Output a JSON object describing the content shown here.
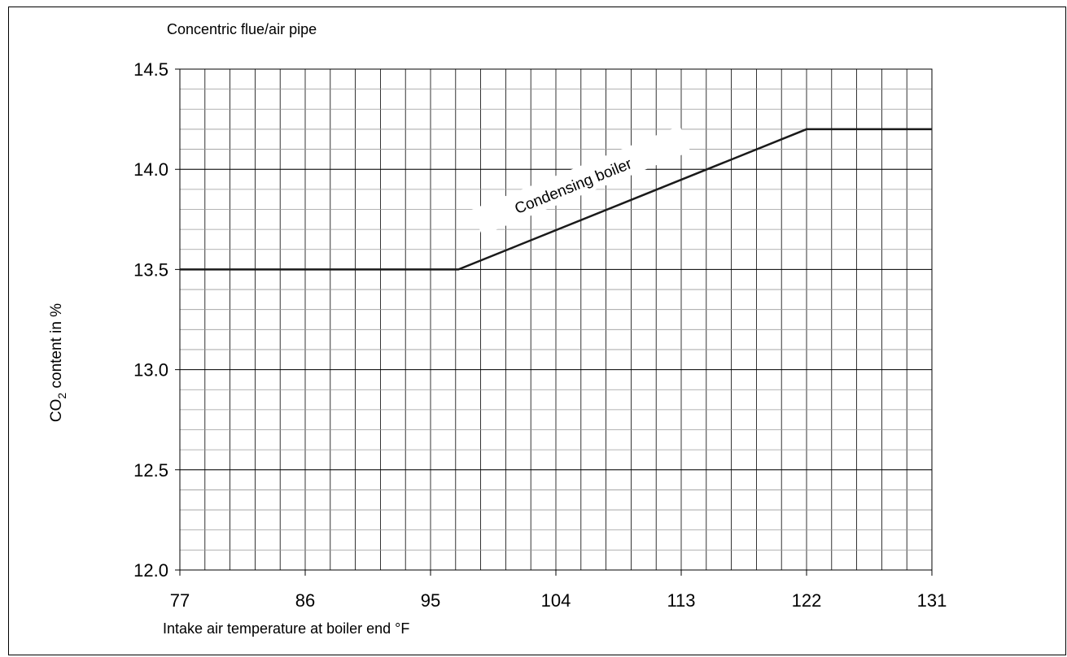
{
  "chart_data": {
    "type": "line",
    "title": "Concentric flue/air pipe",
    "xlabel": "Intake air temperature at boiler end °F",
    "ylabel": {
      "prefix": "CO",
      "subscript": "2",
      "suffix": " content in %"
    },
    "xlim": [
      77,
      131
    ],
    "ylim": [
      12.0,
      14.5
    ],
    "x_ticks": [
      "77",
      "86",
      "95",
      "104",
      "113",
      "122",
      "131"
    ],
    "x_tick_values": [
      77,
      86,
      95,
      104,
      113,
      122,
      131
    ],
    "y_ticks": [
      "12.0",
      "12.5",
      "13.0",
      "13.5",
      "14.0",
      "14.5"
    ],
    "y_tick_values": [
      12.0,
      12.5,
      13.0,
      13.5,
      14.0,
      14.5
    ],
    "x_minor_step": 1.8,
    "y_minor_step": 0.1,
    "grid": true,
    "series": [
      {
        "name": "Condensing boiler",
        "points": [
          {
            "x": 77,
            "y": 13.5
          },
          {
            "x": 97,
            "y": 13.5
          },
          {
            "x": 122,
            "y": 14.2
          },
          {
            "x": 131,
            "y": 14.2
          }
        ]
      }
    ],
    "annotation": {
      "text": "Condensing boiler",
      "x": 106,
      "y": 13.91
    }
  }
}
